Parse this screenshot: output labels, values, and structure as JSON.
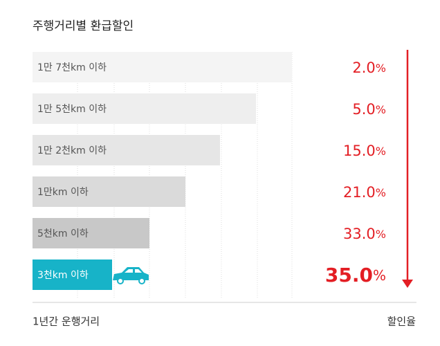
{
  "header": {
    "title": "주행거리별 환급할인"
  },
  "rows": [
    {
      "label": "1만 7천km 이하",
      "rate": "2.0",
      "unit": "%"
    },
    {
      "label": "1만 5천km 이하",
      "rate": "5.0",
      "unit": "%"
    },
    {
      "label": "1만 2천km 이하",
      "rate": "15.0",
      "unit": "%"
    },
    {
      "label": "1만km 이하",
      "rate": "21.0",
      "unit": "%"
    },
    {
      "label": "5천km 이하",
      "rate": "33.0",
      "unit": "%"
    },
    {
      "label": "3천km 이하",
      "rate": "35.0",
      "unit": "%"
    }
  ],
  "footer": {
    "left": "1년간 운행거리",
    "right": "할인율"
  }
}
